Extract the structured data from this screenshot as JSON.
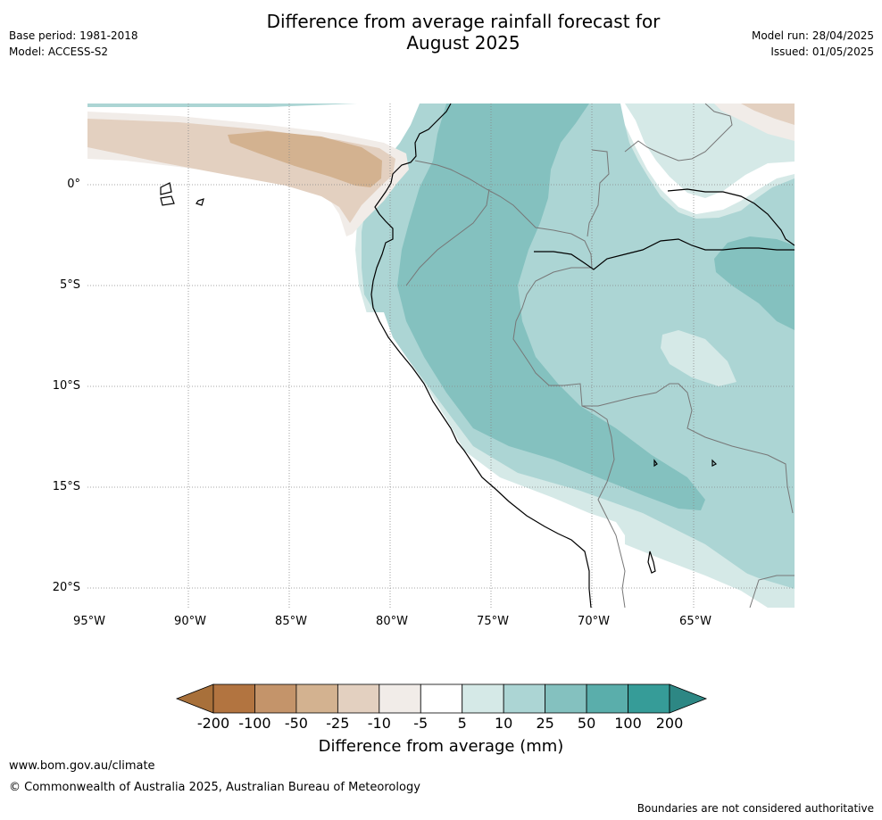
{
  "header": {
    "base_period": "Base period: 1981-2018",
    "model": "Model: ACCESS-S2",
    "title_line1": "Difference from average rainfall forecast for",
    "title_line2": "August 2025",
    "model_run": "Model run: 28/04/2025",
    "issued": "Issued: 01/05/2025"
  },
  "map": {
    "lat_labels": [
      "0°",
      "5°S",
      "10°S",
      "15°S",
      "20°S"
    ],
    "lon_labels": [
      "95°W",
      "90°W",
      "85°W",
      "80°W",
      "75°W",
      "70°W",
      "65°W"
    ]
  },
  "colorbar": {
    "title": "Difference from average (mm)",
    "tick_labels": [
      "-200",
      "-100",
      "-50",
      "-25",
      "-10",
      "-5",
      "5",
      "10",
      "25",
      "50",
      "100",
      "200"
    ],
    "colors": [
      "#a8703a",
      "#b27440",
      "#c4946a",
      "#d3b290",
      "#e3d0c0",
      "#f1ece8",
      "#ffffff",
      "#d5e9e7",
      "#acd5d4",
      "#84c1bf",
      "#5aaeab",
      "#369c98",
      "#2d8784"
    ]
  },
  "footer": {
    "url": "www.bom.gov.au/climate",
    "copyright": "© Commonwealth of Australia 2025, Australian Bureau of Meteorology",
    "disclaimer": "Boundaries are not considered authoritative"
  }
}
